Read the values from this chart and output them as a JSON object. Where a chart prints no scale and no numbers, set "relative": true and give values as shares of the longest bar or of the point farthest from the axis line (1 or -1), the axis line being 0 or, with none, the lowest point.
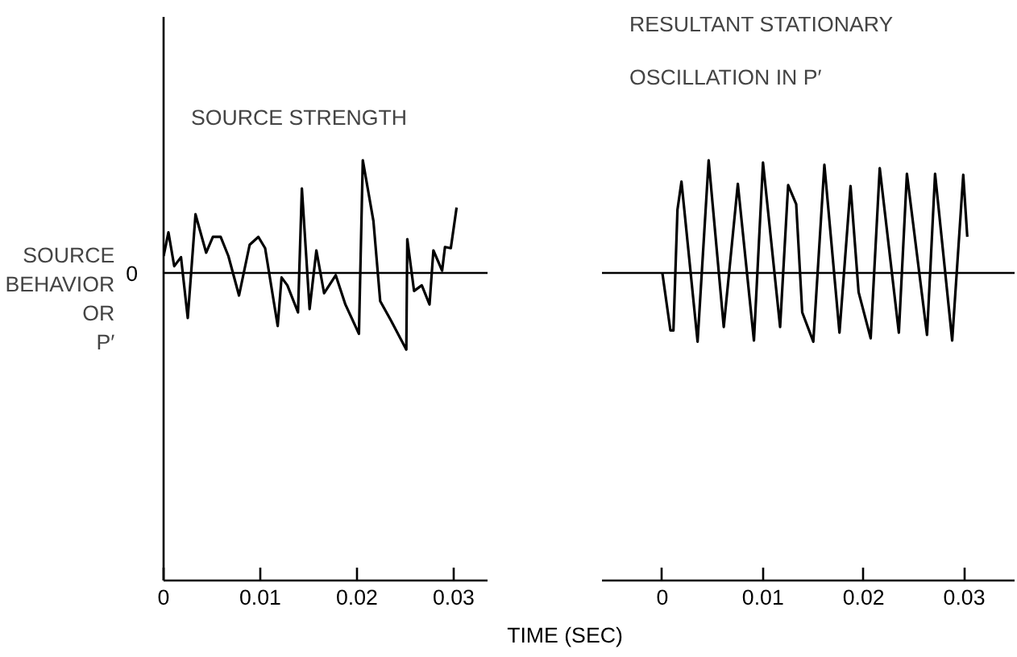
{
  "chart_data": [
    {
      "type": "line",
      "title": "SOURCE STRENGTH",
      "ylabel": "SOURCE\nBEHAVIOR\nOR\nP′",
      "relative": true,
      "tick_labels": "x",
      "grid": false,
      "xlim": [
        0,
        0.0335
      ],
      "xticks": [
        0,
        0.01,
        0.02,
        0.03
      ],
      "ref_lines": [
        {
          "axis": "y",
          "value": 0,
          "label": "0"
        }
      ],
      "series": [
        {
          "color": "#000000",
          "x": [
            0.0,
            0.0005,
            0.0011,
            0.0018,
            0.0025,
            0.0033,
            0.0044,
            0.0051,
            0.0059,
            0.0067,
            0.0078,
            0.0089,
            0.0098,
            0.0105,
            0.0118,
            0.0122,
            0.0128,
            0.0139,
            0.0143,
            0.0151,
            0.0158,
            0.0166,
            0.0178,
            0.0188,
            0.0202,
            0.0206,
            0.0217,
            0.0224,
            0.0235,
            0.0251,
            0.0252,
            0.0259,
            0.0267,
            0.0275,
            0.0279,
            0.0288,
            0.0291,
            0.0297,
            0.0303
          ],
          "values": [
            0.15,
            0.36,
            0.06,
            0.14,
            -0.4,
            0.52,
            0.18,
            0.32,
            0.32,
            0.15,
            -0.2,
            0.25,
            0.32,
            0.22,
            -0.47,
            -0.04,
            -0.11,
            -0.35,
            0.75,
            -0.32,
            0.2,
            -0.18,
            -0.02,
            -0.28,
            -0.54,
            1.0,
            0.46,
            -0.25,
            -0.42,
            -0.68,
            0.3,
            -0.16,
            -0.11,
            -0.28,
            0.2,
            0.02,
            0.23,
            0.22,
            0.58
          ]
        }
      ]
    },
    {
      "type": "line",
      "title": "RESULTANT STATIONARY\nOSCILLATION IN P′",
      "xlabel": "TIME (SEC)",
      "relative": true,
      "tick_labels": "x",
      "grid": false,
      "xlim": [
        -0.006,
        0.035
      ],
      "xticks": [
        0,
        0.01,
        0.02,
        0.03
      ],
      "ref_lines": [
        {
          "axis": "y",
          "value": 0
        }
      ],
      "series": [
        {
          "color": "#000000",
          "x": [
            0.0,
            0.0008,
            0.0011,
            0.0015,
            0.0019,
            0.0035,
            0.0046,
            0.0061,
            0.0075,
            0.0091,
            0.01,
            0.0117,
            0.0125,
            0.0133,
            0.0139,
            0.015,
            0.0161,
            0.0176,
            0.0187,
            0.0195,
            0.0207,
            0.0216,
            0.0235,
            0.0243,
            0.0263,
            0.0271,
            0.0288,
            0.0299,
            0.0303
          ],
          "values": [
            0.0,
            -0.51,
            -0.51,
            0.56,
            0.81,
            -0.61,
            1.0,
            -0.48,
            0.79,
            -0.6,
            0.98,
            -0.48,
            0.78,
            0.61,
            -0.35,
            -0.61,
            0.96,
            -0.53,
            0.77,
            -0.17,
            -0.58,
            0.93,
            -0.53,
            0.88,
            -0.55,
            0.88,
            -0.6,
            0.87,
            0.32
          ]
        }
      ]
    }
  ]
}
